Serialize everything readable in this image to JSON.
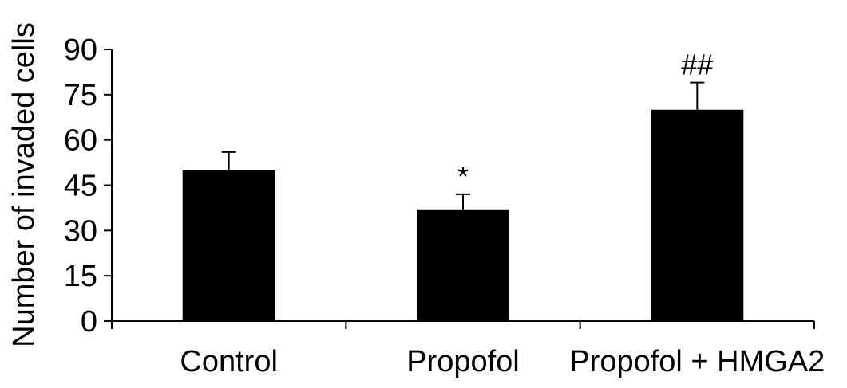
{
  "chart_data": {
    "type": "bar",
    "title": "",
    "xlabel": "",
    "ylabel": "Number of invaded cells",
    "ylim": [
      0,
      90
    ],
    "yticks": [
      0,
      15,
      30,
      45,
      60,
      75,
      90
    ],
    "grid": false,
    "legend": "none",
    "categories": [
      "Control",
      "Propofol",
      "Propofol + HMGA2"
    ],
    "values": [
      50,
      37,
      70
    ],
    "errors": [
      6,
      5,
      9
    ],
    "annotations": [
      "",
      "*",
      "##"
    ],
    "bar_color": "#000000"
  }
}
